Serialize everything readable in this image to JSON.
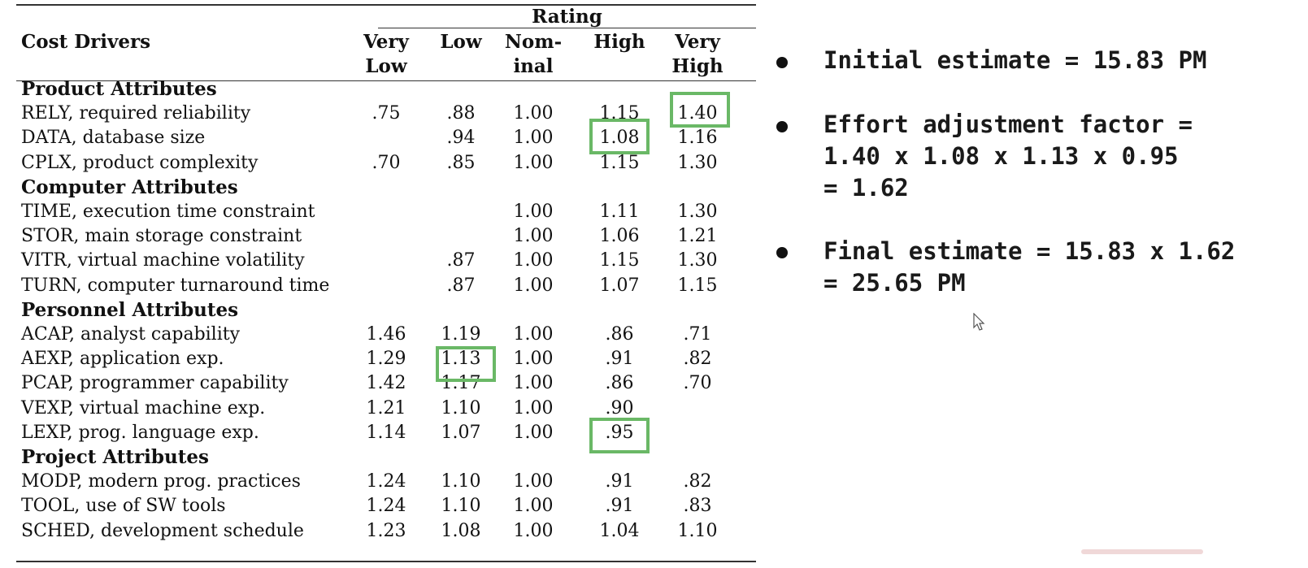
{
  "table": {
    "rating_header": "Rating",
    "cost_drivers_header": "Cost Drivers",
    "column_headers": [
      [
        "Very",
        "Low"
      ],
      [
        "Low",
        ""
      ],
      [
        "Nom-",
        "inal"
      ],
      [
        "High",
        ""
      ],
      [
        "Very",
        "High"
      ]
    ],
    "groups": [
      {
        "title": "Product Attributes",
        "rows": [
          {
            "label": "RELY, required reliability",
            "values": [
              ".75",
              ".88",
              "1.00",
              "1.15",
              "1.40"
            ]
          },
          {
            "label": "DATA, database size",
            "values": [
              "",
              ".94",
              "1.00",
              "1.08",
              "1.16"
            ]
          },
          {
            "label": "CPLX, product complexity",
            "values": [
              ".70",
              ".85",
              "1.00",
              "1.15",
              "1.30"
            ]
          }
        ]
      },
      {
        "title": "Computer Attributes",
        "rows": [
          {
            "label": "TIME, execution time constraint",
            "values": [
              "",
              "",
              "1.00",
              "1.11",
              "1.30"
            ]
          },
          {
            "label": "STOR, main storage constraint",
            "values": [
              "",
              "",
              "1.00",
              "1.06",
              "1.21"
            ]
          },
          {
            "label": "VITR, virtual machine volatility",
            "values": [
              "",
              ".87",
              "1.00",
              "1.15",
              "1.30"
            ]
          },
          {
            "label": "TURN, computer turnaround time",
            "values": [
              "",
              ".87",
              "1.00",
              "1.07",
              "1.15"
            ]
          }
        ]
      },
      {
        "title": "Personnel Attributes",
        "rows": [
          {
            "label": "ACAP, analyst capability",
            "values": [
              "1.46",
              "1.19",
              "1.00",
              ".86",
              ".71"
            ]
          },
          {
            "label": "AEXP, application exp.",
            "values": [
              "1.29",
              "1.13",
              "1.00",
              ".91",
              ".82"
            ]
          },
          {
            "label": "PCAP, programmer capability",
            "values": [
              "1.42",
              "1.17",
              "1.00",
              ".86",
              ".70"
            ]
          },
          {
            "label": "VEXP, virtual machine exp.",
            "values": [
              "1.21",
              "1.10",
              "1.00",
              ".90",
              ""
            ]
          },
          {
            "label": "LEXP, prog. language exp.",
            "values": [
              "1.14",
              "1.07",
              "1.00",
              ".95",
              ""
            ]
          }
        ]
      },
      {
        "title": "Project Attributes",
        "rows": [
          {
            "label": "MODP, modern prog. practices",
            "values": [
              "1.24",
              "1.10",
              "1.00",
              ".91",
              ".82"
            ]
          },
          {
            "label": "TOOL, use of SW tools",
            "values": [
              "1.24",
              "1.10",
              "1.00",
              ".91",
              ".83"
            ]
          },
          {
            "label": "SCHED, development schedule",
            "values": [
              "1.23",
              "1.08",
              "1.00",
              "1.04",
              "1.10"
            ]
          }
        ]
      }
    ],
    "highlight_color": "#6ab866",
    "highlighted_cells": [
      {
        "driver": "RELY",
        "rating": "Very High",
        "value": "1.40"
      },
      {
        "driver": "DATA",
        "rating": "High",
        "value": "1.08"
      },
      {
        "driver": "AEXP",
        "rating": "Low",
        "value": "1.13"
      },
      {
        "driver": "LEXP",
        "rating": "High",
        "value": ".95"
      }
    ]
  },
  "bullets": [
    {
      "lines": [
        "Initial estimate = 15.83 PM"
      ]
    },
    {
      "lines": [
        "Effort adjustment factor =",
        "1.40 x 1.08 x 1.13 x 0.95",
        "= 1.62"
      ]
    },
    {
      "lines": [
        "Final estimate = 15.83 x 1.62",
        "= 25.65 PM"
      ]
    }
  ],
  "icons": {
    "cursor": "mouse-pointer-icon",
    "bullet": "bullet-dot-icon"
  }
}
